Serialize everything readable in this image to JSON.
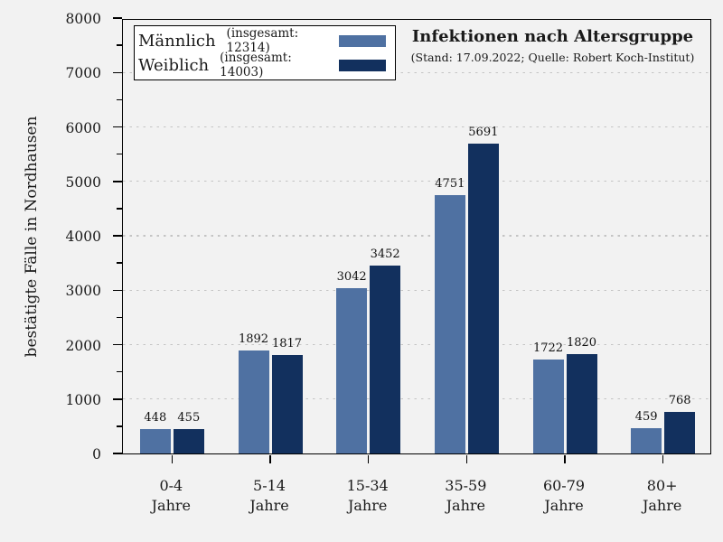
{
  "figure": {
    "background": "#f2f2f2",
    "plot_background": "#f2f2f2",
    "legend_background": "#ffffff"
  },
  "chart_data": {
    "type": "bar",
    "title": "Infektionen nach Altersgruppe",
    "subtitle": "(Stand: 17.09.2022; Quelle: Robert Koch-Institut)",
    "ylabel": "bestätigte Fälle in Nordhausen",
    "xlabel": "",
    "categories": [
      "0-4",
      "5-14",
      "15-34",
      "35-59",
      "60-79",
      "80+"
    ],
    "category_line2": "Jahre",
    "series": [
      {
        "name": "Männlich",
        "legend_sublabel": "(insgesamt: 12314)",
        "total": 12314,
        "color": "#4f71a2",
        "values": [
          448,
          1892,
          3042,
          4751,
          1722,
          459
        ]
      },
      {
        "name": "Weiblich",
        "legend_sublabel": "(insgesamt: 14003)",
        "total": 14003,
        "color": "#12305e",
        "values": [
          455,
          1817,
          3452,
          5691,
          1820,
          768
        ]
      }
    ],
    "ylim": [
      0,
      8000
    ],
    "ytick_step": 1000,
    "y_minor_step": 500,
    "yticks": [
      0,
      1000,
      2000,
      3000,
      4000,
      5000,
      6000,
      7000,
      8000
    ],
    "grid": "horizontal-dashed",
    "grid_color": "#c4c4c4",
    "legend_position": "top-left",
    "bar_value_labels": true
  }
}
